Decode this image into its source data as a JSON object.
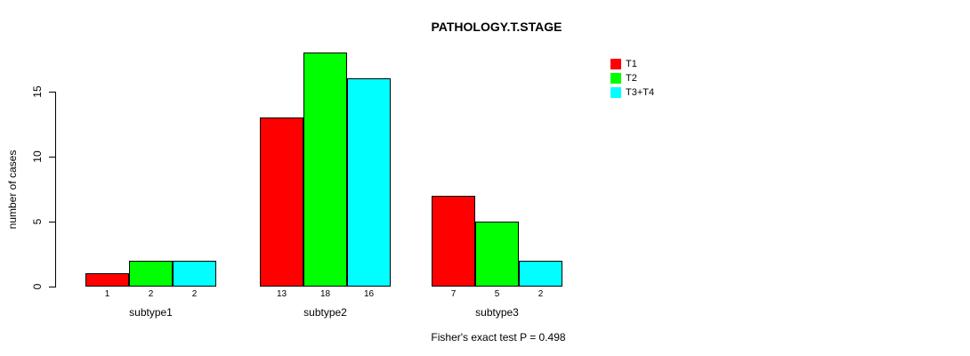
{
  "chart_data": {
    "type": "bar",
    "title": "PATHOLOGY.T.STAGE",
    "xlabel": "",
    "ylabel": "number of cases",
    "categories": [
      "subtype1",
      "subtype2",
      "subtype3"
    ],
    "series": [
      {
        "name": "T1",
        "color": "#ff0000",
        "values": [
          1,
          13,
          7
        ]
      },
      {
        "name": "T2",
        "color": "#00ff00",
        "values": [
          2,
          18,
          5
        ]
      },
      {
        "name": "T3+T4",
        "color": "#00ffff",
        "values": [
          2,
          16,
          2
        ]
      }
    ],
    "bar_value_labels": [
      [
        "1",
        "2",
        "2"
      ],
      [
        "13",
        "18",
        "16"
      ],
      [
        "7",
        "5",
        "2"
      ]
    ],
    "yticks": [
      0,
      5,
      10,
      15
    ],
    "axis_range": [
      0,
      15
    ],
    "ylim": [
      0,
      18
    ],
    "grid": false,
    "legend_position": "top-right",
    "annotation": "Fisher's exact test P = 0.498",
    "colors": {
      "background": "#ffffff",
      "axis": "#000000",
      "bar_border": "#000000",
      "text": "#000000"
    }
  }
}
